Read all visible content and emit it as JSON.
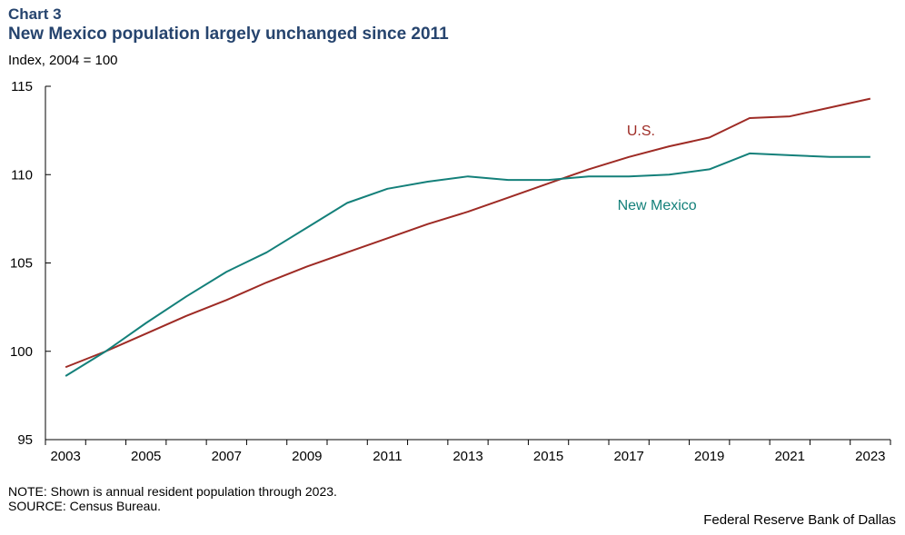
{
  "header": {
    "chart_label": "Chart 3",
    "title": "New Mexico population largely unchanged since 2011",
    "unit_label": "Index,  2004 = 100"
  },
  "footer": {
    "note": "NOTE: Shown is annual resident population through 2023.",
    "source": "SOURCE: Census Bureau.",
    "credit": "Federal Reserve Bank of Dallas"
  },
  "colors": {
    "title": "#26446e",
    "us_series": "#9e2b25",
    "nm_series": "#14807a",
    "axis": "#000000"
  },
  "chart_data": {
    "type": "line",
    "title": "New Mexico population largely unchanged since 2011",
    "xlabel": "",
    "ylabel": "Index,  2004 = 100",
    "x": [
      2003,
      2004,
      2005,
      2006,
      2007,
      2008,
      2009,
      2010,
      2011,
      2012,
      2013,
      2014,
      2015,
      2016,
      2017,
      2018,
      2019,
      2020,
      2021,
      2022,
      2023
    ],
    "xticks": [
      "2003",
      "2005",
      "2007",
      "2009",
      "2011",
      "2013",
      "2015",
      "2017",
      "2019",
      "2021",
      "2023"
    ],
    "ylim": [
      95,
      115
    ],
    "yticks": [
      "95",
      "100",
      "105",
      "110",
      "115"
    ],
    "grid": false,
    "legend": "inline labels",
    "series": [
      {
        "name": "U.S.",
        "values": [
          99.1,
          100.0,
          101.0,
          102.0,
          102.9,
          103.9,
          104.8,
          105.6,
          106.4,
          107.2,
          107.9,
          108.7,
          109.5,
          110.3,
          111.0,
          111.6,
          112.1,
          113.2,
          113.3,
          113.8,
          114.3
        ]
      },
      {
        "name": "New Mexico",
        "values": [
          98.6,
          100.0,
          101.6,
          103.1,
          104.5,
          105.6,
          107.0,
          108.4,
          109.2,
          109.6,
          109.9,
          109.7,
          109.7,
          109.9,
          109.9,
          110.0,
          110.3,
          111.2,
          111.1,
          111.0,
          111.0
        ]
      }
    ]
  }
}
